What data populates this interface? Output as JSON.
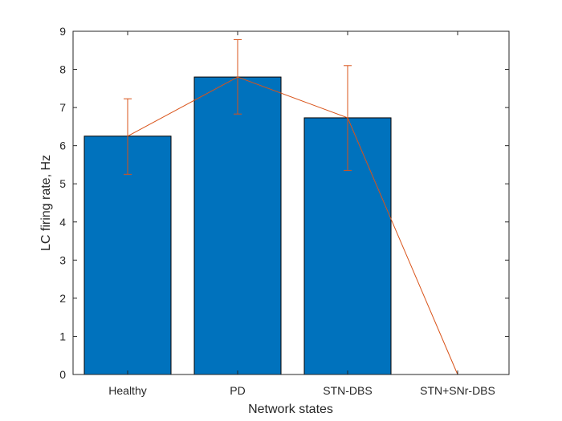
{
  "chart_data": {
    "type": "bar",
    "categories": [
      "Healthy",
      "PD",
      "STN-DBS",
      "STN+SNr-DBS"
    ],
    "values": [
      6.25,
      7.8,
      6.73,
      0
    ],
    "error_low": [
      1.0,
      0.97,
      1.38,
      0
    ],
    "error_high": [
      0.98,
      0.98,
      1.37,
      0
    ],
    "overlay_line_values": [
      6.25,
      7.8,
      6.73,
      0
    ],
    "xlabel": "Network states",
    "ylabel": "LC firing rate, Hz",
    "ylim": [
      0,
      9
    ],
    "yticks": [
      0,
      1,
      2,
      3,
      4,
      5,
      6,
      7,
      8,
      9
    ],
    "grid": false,
    "colors": {
      "bar": "#0072BD",
      "bar_edge": "#000000",
      "error_and_line": "#D95319",
      "axes": "#262626"
    }
  }
}
